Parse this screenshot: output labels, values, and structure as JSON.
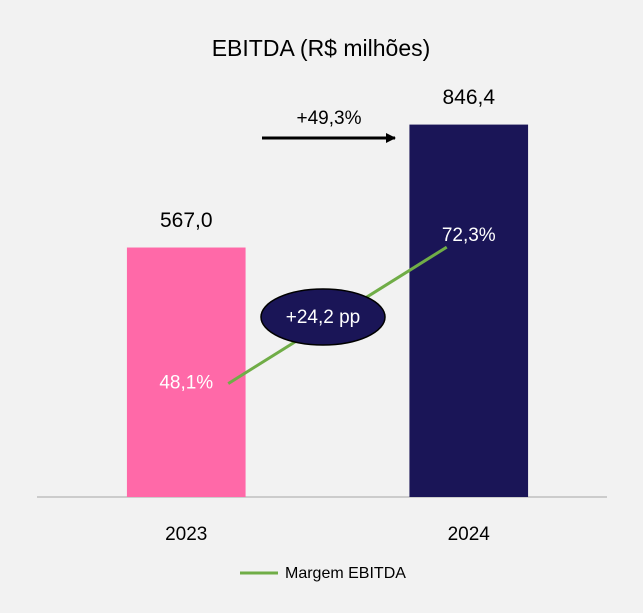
{
  "chart_data": {
    "type": "bar",
    "title": "EBITDA (R$ milhões)",
    "categories": [
      "2023",
      "2024"
    ],
    "series": [
      {
        "values": [
          567.0,
          846.4
        ],
        "value_labels": [
          "567,0",
          "846,4"
        ],
        "colors": [
          "#ff69a8",
          "#1a1557"
        ]
      },
      {
        "type": "line",
        "name": "Margem EBITDA",
        "color": "#70ad47",
        "axis": "y2",
        "values": [
          48.1,
          72.3
        ],
        "value_labels": [
          "48,1%",
          "72,3%"
        ]
      }
    ],
    "ylim": [
      0,
      1000
    ],
    "y2lim": [
      28,
      106
    ],
    "annotations": [
      "+49,3%",
      "+24,2 pp"
    ],
    "legend": "bottom"
  }
}
